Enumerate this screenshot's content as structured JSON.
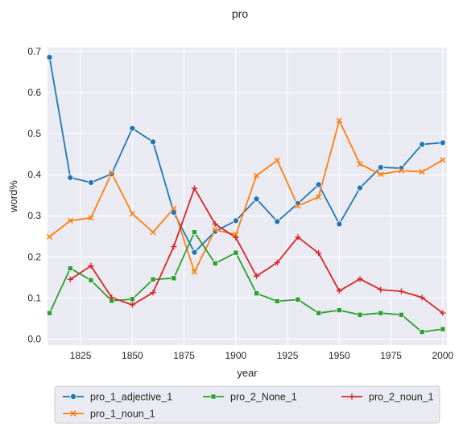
{
  "chart_data": {
    "type": "line",
    "title": "pro",
    "xlabel": "year",
    "ylabel": "word%",
    "xlim": [
      1809,
      2002
    ],
    "ylim": [
      -0.015,
      0.71
    ],
    "xticks": [
      1825,
      1850,
      1875,
      1900,
      1925,
      1950,
      1975,
      2000
    ],
    "yticks": [
      0.0,
      0.1,
      0.2,
      0.3,
      0.4,
      0.5,
      0.6,
      0.7
    ],
    "xtick_labels": [
      "1825",
      "1850",
      "1875",
      "1900",
      "1925",
      "1950",
      "1975",
      "2000"
    ],
    "ytick_labels": [
      "0.0",
      "0.1",
      "0.2",
      "0.3",
      "0.4",
      "0.5",
      "0.6",
      "0.7"
    ],
    "grid": true,
    "legend_position": "bottom-center",
    "x": [
      1810,
      1820,
      1830,
      1840,
      1850,
      1860,
      1870,
      1880,
      1890,
      1900,
      1910,
      1920,
      1930,
      1940,
      1950,
      1960,
      1970,
      1980,
      1990,
      2000
    ],
    "series": [
      {
        "name": "pro_1_adjective_1",
        "color": "#1f77b4",
        "marker": "circle",
        "values": [
          0.686,
          0.393,
          0.381,
          0.402,
          0.513,
          0.48,
          0.308,
          0.211,
          0.262,
          0.288,
          0.341,
          0.286,
          0.33,
          0.376,
          0.28,
          0.368,
          0.418,
          0.416,
          0.474,
          0.478
        ]
      },
      {
        "name": "pro_1_noun_1",
        "color": "#ff7f0e",
        "marker": "x",
        "values": [
          0.249,
          0.288,
          0.295,
          0.404,
          0.305,
          0.26,
          0.318,
          0.163,
          0.266,
          0.254,
          0.398,
          0.435,
          0.324,
          0.346,
          0.532,
          0.426,
          0.401,
          0.41,
          0.407,
          0.436
        ]
      },
      {
        "name": "pro_2_None_1",
        "color": "#2ca02c",
        "marker": "square",
        "values": [
          0.063,
          0.172,
          0.143,
          0.093,
          0.097,
          0.145,
          0.148,
          0.26,
          0.184,
          0.21,
          0.111,
          0.092,
          0.096,
          0.063,
          0.07,
          0.059,
          0.063,
          0.059,
          0.017,
          0.024
        ]
      },
      {
        "name": "pro_2_noun_1",
        "color": "#d62728",
        "marker": "plus",
        "values": [
          null,
          0.145,
          0.178,
          0.101,
          0.083,
          0.113,
          0.225,
          0.367,
          0.28,
          0.247,
          0.153,
          0.186,
          0.248,
          0.209,
          0.117,
          0.146,
          0.12,
          0.116,
          0.101,
          0.063
        ]
      }
    ]
  }
}
